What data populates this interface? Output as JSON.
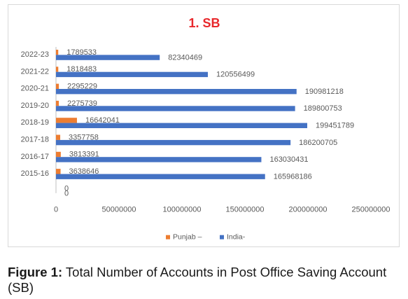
{
  "chart_data": {
    "type": "bar",
    "orientation": "horizontal",
    "title": "1. SB",
    "categories": [
      "2022-23",
      "2021-22",
      "2020-21",
      "2019-20",
      "2018-19",
      "2017-18",
      "2016-17",
      "2015-16",
      ""
    ],
    "series": [
      {
        "name": "Punjab –",
        "color": "#ed7d31",
        "values": [
          1789533,
          1818483,
          2295229,
          2275739,
          16642041,
          3357758,
          3813391,
          3638646,
          0
        ]
      },
      {
        "name": "India-",
        "color": "#4472c4",
        "values": [
          82340469,
          120556499,
          190981218,
          189800753,
          199451789,
          186200705,
          163030431,
          165968186,
          0
        ]
      }
    ],
    "xlim": [
      0,
      250000000
    ],
    "xticks": [
      "0",
      "50000000",
      "100000000",
      "150000000",
      "200000000",
      "250000000"
    ],
    "grid": false,
    "legend_position": "bottom"
  },
  "caption": {
    "label": "Figure 1:",
    "text": " Total Number of Accounts in Post Office Saving Account (SB)"
  }
}
